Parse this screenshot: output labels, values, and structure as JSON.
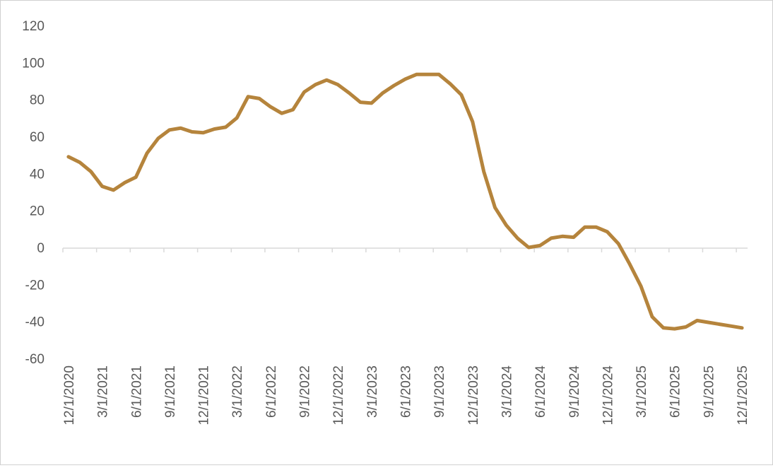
{
  "chart_data": {
    "type": "line",
    "title": "",
    "xlabel": "",
    "ylabel": "",
    "ylim": [
      -60,
      120
    ],
    "y_ticks": [
      "120",
      "100",
      "80",
      "60",
      "40",
      "20",
      "0",
      "-20",
      "-40",
      "-60"
    ],
    "y_tick_values": [
      120,
      100,
      80,
      60,
      40,
      20,
      0,
      -20,
      -40,
      -60
    ],
    "x_tick_labels": [
      "12/1/2020",
      "3/1/2021",
      "6/1/2021",
      "9/1/2021",
      "12/1/2021",
      "3/1/2022",
      "6/1/2022",
      "9/1/2022",
      "12/1/2022",
      "3/1/2023",
      "6/1/2023",
      "9/1/2023",
      "12/1/2023",
      "3/1/2024",
      "6/1/2024",
      "9/1/2024",
      "12/1/2024",
      "3/1/2025",
      "6/1/2025",
      "9/1/2025",
      "12/1/2025"
    ],
    "grid": false,
    "legend": "none",
    "line_color": "#b5843c",
    "axis_color": "#d9d9d9",
    "series": [
      {
        "x": [
          "12/1/2020",
          "1/1/2021",
          "2/1/2021",
          "3/1/2021",
          "4/1/2021",
          "5/1/2021",
          "6/1/2021",
          "7/1/2021",
          "8/1/2021",
          "9/1/2021",
          "10/1/2021",
          "11/1/2021",
          "12/1/2021",
          "1/1/2022",
          "2/1/2022",
          "3/1/2022",
          "4/1/2022",
          "5/1/2022",
          "6/1/2022",
          "7/1/2022",
          "8/1/2022",
          "9/1/2022",
          "10/1/2022",
          "11/1/2022",
          "12/1/2022",
          "1/1/2023",
          "2/1/2023",
          "3/1/2023",
          "4/1/2023",
          "5/1/2023",
          "6/1/2023",
          "7/1/2023",
          "8/1/2023",
          "9/1/2023",
          "10/1/2023",
          "11/1/2023",
          "12/1/2023",
          "1/1/2024",
          "2/1/2024",
          "3/1/2024",
          "4/1/2024",
          "5/1/2024",
          "6/1/2024",
          "7/1/2024",
          "8/1/2024",
          "9/1/2024",
          "10/1/2024",
          "11/1/2024",
          "12/1/2024",
          "1/1/2025",
          "2/1/2025",
          "3/1/2025",
          "4/1/2025",
          "5/1/2025",
          "6/1/2025",
          "7/1/2025",
          "8/1/2025",
          "9/1/2025",
          "10/1/2025",
          "11/1/2025",
          "12/1/2025"
        ],
        "values": [
          49,
          46,
          41,
          33,
          31,
          35,
          38,
          51,
          59,
          63.5,
          64.5,
          62.5,
          62,
          64,
          65,
          70,
          81.5,
          80.5,
          76,
          72.5,
          74.5,
          84,
          88,
          90.5,
          88,
          83.5,
          78.5,
          78,
          83.5,
          87.5,
          91,
          93.5,
          93.5,
          93.5,
          88.5,
          82.5,
          68,
          41,
          21.5,
          12,
          5,
          0,
          1,
          5,
          6,
          5.5,
          11,
          11,
          8.5,
          2,
          -9,
          -21,
          -37.5,
          -43.5,
          -44,
          -43,
          -39.5,
          -40.5,
          -41.5,
          -42.5,
          -43.5
        ]
      }
    ]
  }
}
